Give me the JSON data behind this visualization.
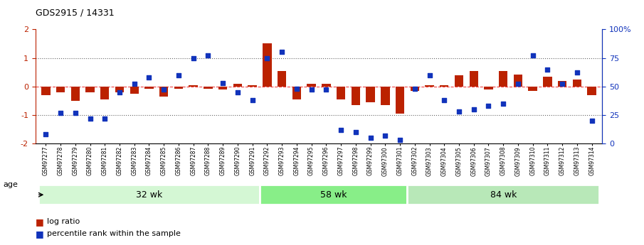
{
  "title": "GDS2915 / 14331",
  "samples": [
    "GSM97277",
    "GSM97278",
    "GSM97279",
    "GSM97280",
    "GSM97281",
    "GSM97282",
    "GSM97283",
    "GSM97284",
    "GSM97285",
    "GSM97286",
    "GSM97287",
    "GSM97288",
    "GSM97289",
    "GSM97290",
    "GSM97291",
    "GSM97292",
    "GSM97293",
    "GSM97294",
    "GSM97295",
    "GSM97296",
    "GSM97297",
    "GSM97298",
    "GSM97299",
    "GSM97300",
    "GSM97301",
    "GSM97302",
    "GSM97303",
    "GSM97304",
    "GSM97305",
    "GSM97306",
    "GSM97307",
    "GSM97308",
    "GSM97309",
    "GSM97310",
    "GSM97311",
    "GSM97312",
    "GSM97313",
    "GSM97314"
  ],
  "log_ratio": [
    -0.3,
    -0.2,
    -0.5,
    -0.22,
    -0.45,
    -0.2,
    -0.25,
    -0.08,
    -0.35,
    -0.08,
    0.05,
    -0.08,
    -0.1,
    0.08,
    0.05,
    1.5,
    0.55,
    -0.45,
    0.08,
    0.1,
    -0.45,
    -0.65,
    -0.55,
    -0.65,
    -0.95,
    -0.15,
    0.04,
    0.04,
    0.4,
    0.55,
    -0.12,
    0.55,
    0.42,
    -0.15,
    0.35,
    0.2,
    0.25,
    -0.3
  ],
  "percentile": [
    8,
    27,
    27,
    22,
    22,
    45,
    52,
    58,
    47,
    60,
    75,
    77,
    53,
    45,
    38,
    75,
    80,
    48,
    47,
    47,
    12,
    10,
    5,
    7,
    3,
    48,
    60,
    38,
    28,
    30,
    33,
    35,
    52,
    77,
    65,
    52,
    62,
    20
  ],
  "groups": [
    {
      "label": "32 wk",
      "start": 0,
      "end": 15
    },
    {
      "label": "58 wk",
      "start": 15,
      "end": 25
    },
    {
      "label": "84 wk",
      "start": 25,
      "end": 38
    }
  ],
  "group_colors": [
    "#d4f7d4",
    "#88ee88",
    "#b8e8b8"
  ],
  "ylim": [
    -2,
    2
  ],
  "y2lim": [
    0,
    100
  ],
  "bar_color": "#bb2200",
  "dot_color": "#1133bb",
  "zero_color": "#ee4444",
  "age_label": "age",
  "legend_log": "log ratio",
  "legend_pct": "percentile rank within the sample",
  "title_fontsize": 9,
  "tick_fontsize": 5.5,
  "label_fontsize": 8
}
